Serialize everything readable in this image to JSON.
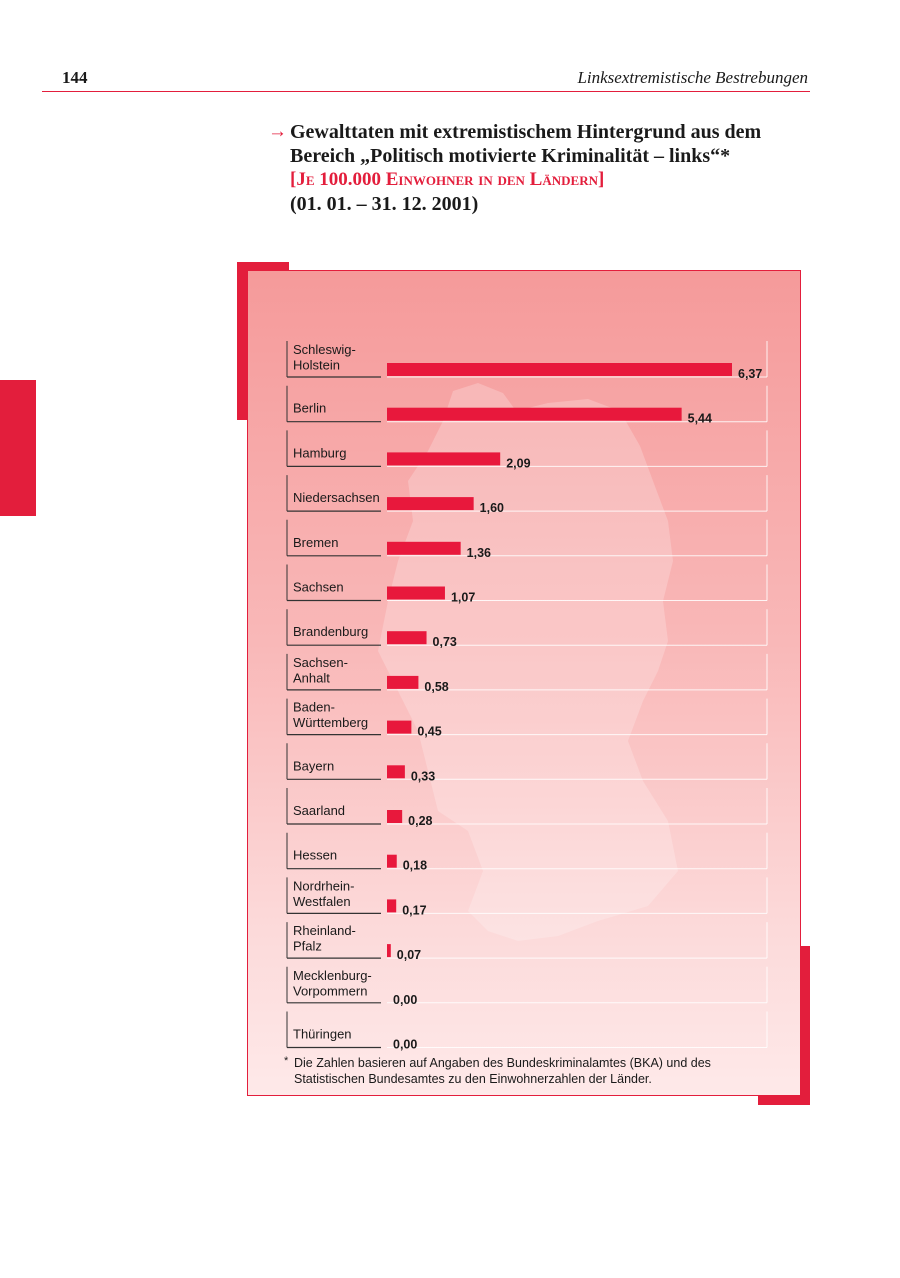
{
  "header": {
    "page_number": "144",
    "running_title": "Linksextremistische Bestrebungen"
  },
  "colors": {
    "accent": "#e31e3c",
    "bar": "#e8183c",
    "panel_top": "#f59a9a",
    "panel_bottom": "#fee9e9"
  },
  "figure": {
    "arrow_icon": "→",
    "title": "Gewalttaten mit extremistischem Hintergrund aus dem Bereich „Politisch motivierte Kriminalität – links“*",
    "subtitle": "[Je 100.000 Einwohner in den Ländern]",
    "period": "(01. 01. – 31. 12. 2001)",
    "footnote_mark": "*",
    "footnote": "Die Zahlen basieren auf Angaben des Bundeskriminalamtes (BKA) und des Statistischen Bundesamtes zu den Einwohnerzahlen der Länder."
  },
  "chart_data": {
    "type": "bar",
    "orientation": "horizontal",
    "title": "Gewalttaten mit extremistischem Hintergrund aus dem Bereich „Politisch motivierte Kriminalität – links“ je 100.000 Einwohner in den Ländern (01. 01. – 31. 12. 2001)",
    "categories": [
      [
        "Schleswig-",
        "Holstein"
      ],
      [
        "Berlin"
      ],
      [
        "Hamburg"
      ],
      [
        "Niedersachsen"
      ],
      [
        "Bremen"
      ],
      [
        "Sachsen"
      ],
      [
        "Brandenburg"
      ],
      [
        "Sachsen-",
        "Anhalt"
      ],
      [
        "Baden-",
        "Württemberg"
      ],
      [
        "Bayern"
      ],
      [
        "Saarland"
      ],
      [
        "Hessen"
      ],
      [
        "Nordrhein-",
        "Westfalen"
      ],
      [
        "Rheinland-",
        "Pfalz"
      ],
      [
        "Mecklenburg-",
        "Vorpommern"
      ],
      [
        "Thüringen"
      ]
    ],
    "values": [
      6.37,
      5.44,
      2.09,
      1.6,
      1.36,
      1.07,
      0.73,
      0.58,
      0.45,
      0.33,
      0.28,
      0.18,
      0.17,
      0.07,
      0.0,
      0.0
    ],
    "value_labels": [
      "6,37",
      "5,44",
      "2,09",
      "1,60",
      "1,36",
      "1,07",
      "0,73",
      "0,58",
      "0,45",
      "0,33",
      "0,28",
      "0,18",
      "0,17",
      "0,07",
      "0,00",
      "0,00"
    ],
    "xlim": [
      0,
      6.37
    ],
    "xlabel": "",
    "ylabel": "",
    "grid": false,
    "legend": "none"
  }
}
